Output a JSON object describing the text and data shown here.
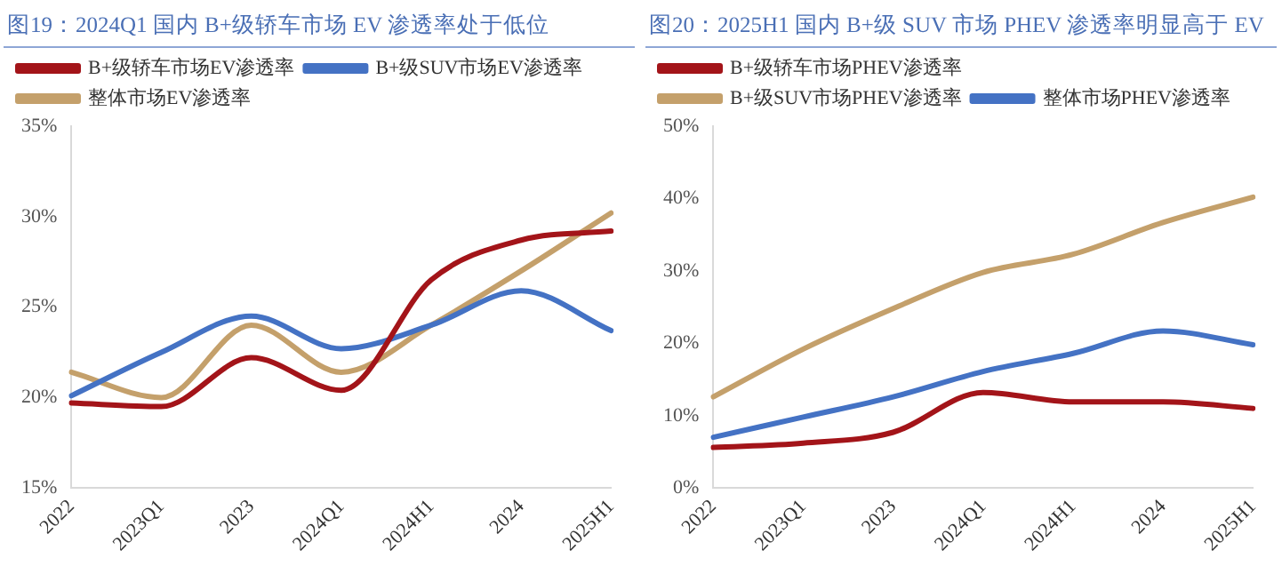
{
  "chart_data": [
    {
      "type": "line",
      "title": "图19：2024Q1 国内 B+级轿车市场 EV 渗透率处于低位",
      "categories": [
        "2022",
        "2023Q1",
        "2023",
        "2024Q1",
        "2024H1",
        "2024",
        "2025H1"
      ],
      "series": [
        {
          "name": "B+级轿车市场EV渗透率",
          "color": "#a31419",
          "values": [
            19.7,
            19.5,
            22.2,
            20.4,
            26.5,
            28.7,
            29.2
          ]
        },
        {
          "name": "B+级SUV市场EV渗透率",
          "color": "#4472c4",
          "values": [
            20.1,
            22.5,
            24.5,
            22.7,
            24.0,
            25.9,
            23.7
          ]
        },
        {
          "name": "整体市场EV渗透率",
          "color": "#c4a06b",
          "values": [
            21.4,
            20.0,
            24.0,
            21.4,
            24.0,
            27.0,
            30.2
          ]
        }
      ],
      "ylim": [
        15,
        35
      ],
      "yticks": [
        {
          "value": 15,
          "label": "15%"
        },
        {
          "value": 20,
          "label": "20%"
        },
        {
          "value": 25,
          "label": "25%"
        },
        {
          "value": 30,
          "label": "30%"
        },
        {
          "value": 35,
          "label": "35%"
        }
      ],
      "grid": false,
      "legend": "top",
      "marker": "none",
      "line_style": "solid"
    },
    {
      "type": "line",
      "title": "图20：2025H1 国内 B+级 SUV 市场 PHEV 渗透率明显高于 EV",
      "categories": [
        "2022",
        "2023Q1",
        "2023",
        "2024Q1",
        "2024H1",
        "2024",
        "2025H1"
      ],
      "series": [
        {
          "name": "B+级轿车市场PHEV渗透率",
          "color": "#a31419",
          "values": [
            5.6,
            6.2,
            7.7,
            13.2,
            11.9,
            11.9,
            11.0
          ]
        },
        {
          "name": "B+级SUV市场PHEV渗透率",
          "color": "#c4a06b",
          "values": [
            12.6,
            19.2,
            24.8,
            29.8,
            32.3,
            36.7,
            40.2
          ]
        },
        {
          "name": "整体市场PHEV渗透率",
          "color": "#4472c4",
          "values": [
            7.0,
            9.8,
            12.6,
            16.1,
            18.6,
            21.7,
            19.8
          ]
        }
      ],
      "ylim": [
        0,
        50
      ],
      "yticks": [
        {
          "value": 0,
          "label": "0%"
        },
        {
          "value": 10,
          "label": "10%"
        },
        {
          "value": 20,
          "label": "20%"
        },
        {
          "value": 30,
          "label": "30%"
        },
        {
          "value": 40,
          "label": "40%"
        },
        {
          "value": 50,
          "label": "50%"
        }
      ],
      "grid": false,
      "legend": "top",
      "marker": "none",
      "line_style": "solid"
    }
  ]
}
